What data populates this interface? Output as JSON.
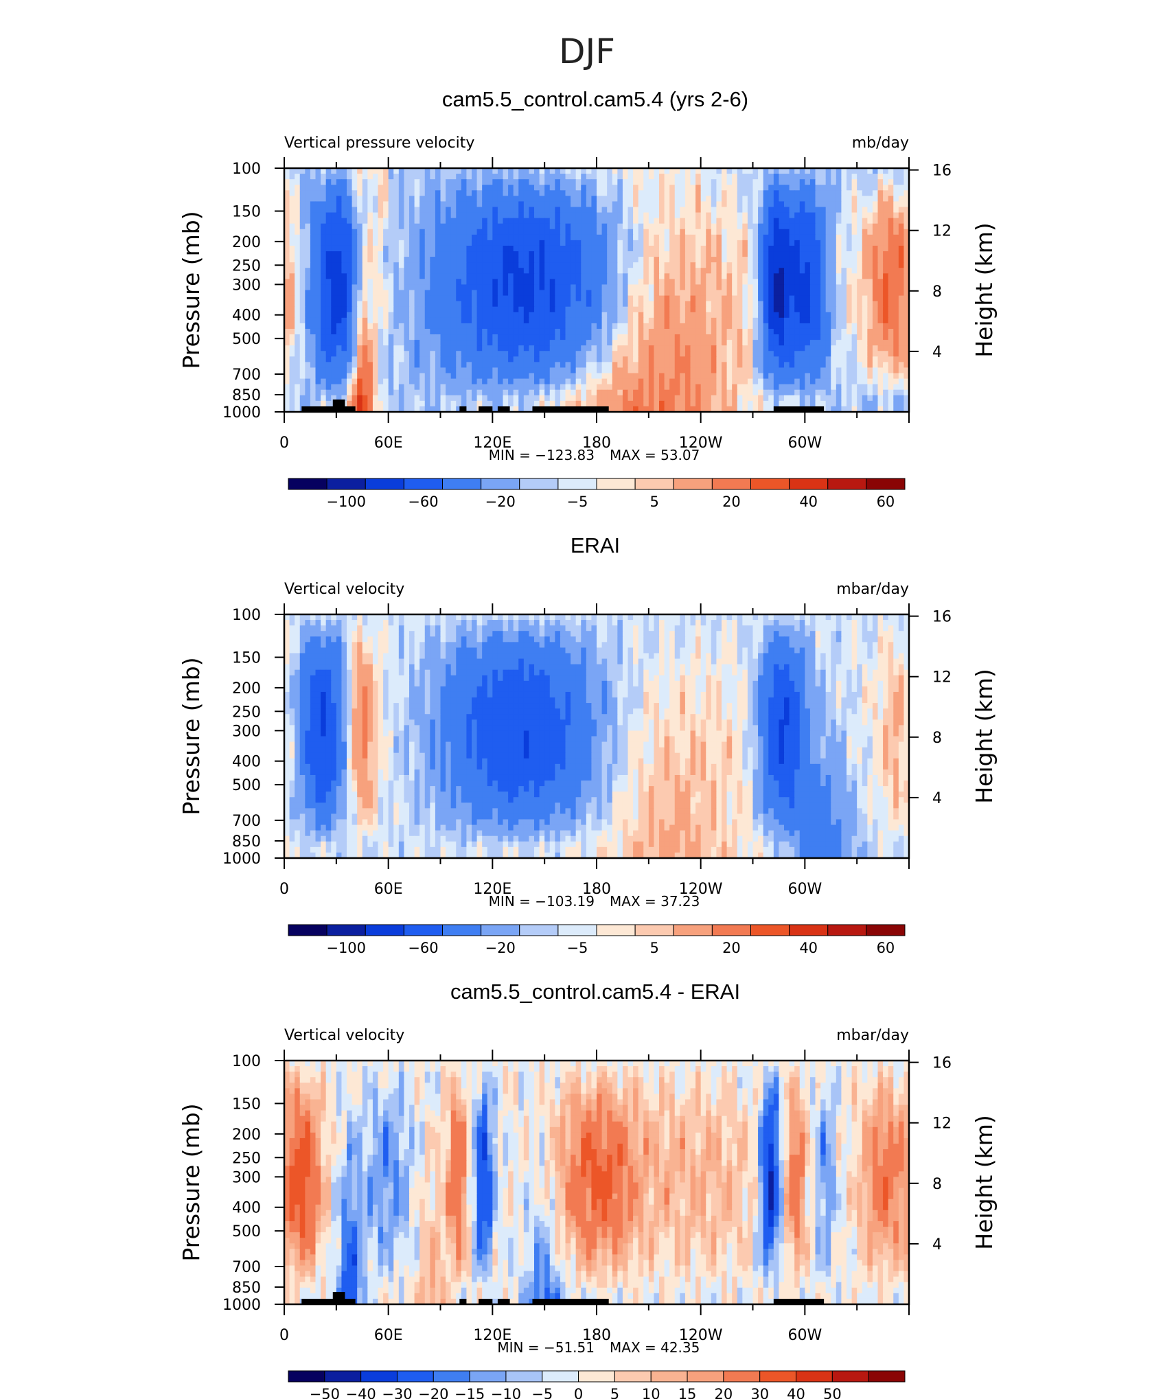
{
  "figure": {
    "title": "DJF"
  },
  "chart_data": [
    {
      "type": "heatmap",
      "title": "cam5.5_control.cam5.4 (yrs 2-6)",
      "left_label": "Vertical pressure velocity",
      "right_label": "mb/day",
      "xlabel": "",
      "ylabel": "Pressure (mb)",
      "y2label": "Height (km)",
      "xticks": [
        "0",
        "60E",
        "120E",
        "180",
        "120W",
        "60W"
      ],
      "yticks": [
        100,
        150,
        200,
        250,
        300,
        400,
        500,
        700,
        850,
        1000
      ],
      "y2ticks": [
        16,
        12,
        8,
        4
      ],
      "min_text": "MIN = −123.83",
      "max_text": "MAX = 53.07",
      "min": -123.83,
      "max": 53.07,
      "colorbar_labels": [
        "−100",
        "−60",
        "−20",
        "−5",
        "5",
        "20",
        "40",
        "60"
      ],
      "levels": [
        -120,
        -100,
        -80,
        -60,
        -40,
        -20,
        -10,
        -5,
        0,
        5,
        10,
        20,
        30,
        40,
        50,
        60
      ],
      "features": [
        {
          "lon": 35,
          "p": 450,
          "value": -70
        },
        {
          "lon": 45,
          "p": 700,
          "value": 40
        },
        {
          "lon": 110,
          "p": 450,
          "value": -60
        },
        {
          "lon": 150,
          "p": 450,
          "value": -80
        },
        {
          "lon": 215,
          "p": 550,
          "value": 25
        },
        {
          "lon": 280,
          "p": 450,
          "value": -70
        },
        {
          "lon": 345,
          "p": 350,
          "value": 30
        }
      ],
      "topography": true
    },
    {
      "type": "heatmap",
      "title": "ERAI",
      "left_label": "Vertical velocity",
      "right_label": "mbar/day",
      "xlabel": "",
      "ylabel": "Pressure (mb)",
      "y2label": "Height (km)",
      "xticks": [
        "0",
        "60E",
        "120E",
        "180",
        "120W",
        "60W"
      ],
      "yticks": [
        100,
        150,
        200,
        250,
        300,
        400,
        500,
        700,
        850,
        1000
      ],
      "y2ticks": [
        16,
        12,
        8,
        4
      ],
      "min_text": "MIN = −103.19",
      "max_text": "MAX = 37.23",
      "min": -103.19,
      "max": 37.23,
      "colorbar_labels": [
        "−100",
        "−60",
        "−20",
        "−5",
        "5",
        "20",
        "40",
        "60"
      ],
      "levels": [
        -120,
        -100,
        -80,
        -60,
        -40,
        -20,
        -10,
        -5,
        0,
        5,
        10,
        20,
        30,
        40,
        50,
        60
      ],
      "features": [
        {
          "lon": 25,
          "p": 450,
          "value": -60
        },
        {
          "lon": 45,
          "p": 550,
          "value": 25
        },
        {
          "lon": 125,
          "p": 450,
          "value": -60
        },
        {
          "lon": 230,
          "p": 500,
          "value": 15
        },
        {
          "lon": 285,
          "p": 550,
          "value": -60
        },
        {
          "lon": 350,
          "p": 350,
          "value": 10
        }
      ],
      "topography": false
    },
    {
      "type": "heatmap",
      "title": "cam5.5_control.cam5.4 - ERAI",
      "left_label": "Vertical velocity",
      "right_label": "mbar/day",
      "xlabel": "",
      "ylabel": "Pressure (mb)",
      "y2label": "Height (km)",
      "xticks": [
        "0",
        "60E",
        "120E",
        "180",
        "120W",
        "60W"
      ],
      "yticks": [
        100,
        150,
        200,
        250,
        300,
        400,
        500,
        700,
        850,
        1000
      ],
      "y2ticks": [
        16,
        12,
        8,
        4
      ],
      "min_text": "MIN = −51.51",
      "max_text": "MAX = 42.35",
      "min": -51.51,
      "max": 42.35,
      "colorbar_labels": [
        "−50",
        "−40",
        "−30",
        "−20",
        "−15",
        "−10",
        "−5",
        "0",
        "5",
        "10",
        "15",
        "20",
        "30",
        "40",
        "50"
      ],
      "levels": [
        -60,
        -50,
        -40,
        -30,
        -20,
        -15,
        -10,
        -5,
        0,
        5,
        10,
        15,
        20,
        30,
        40,
        50,
        60
      ],
      "features": [
        {
          "lon": 10,
          "p": 350,
          "value": 35
        },
        {
          "lon": 38,
          "p": 750,
          "value": -30
        },
        {
          "lon": 100,
          "p": 400,
          "value": 30
        },
        {
          "lon": 115,
          "p": 400,
          "value": -30
        },
        {
          "lon": 180,
          "p": 400,
          "value": 30
        },
        {
          "lon": 280,
          "p": 400,
          "value": -40
        },
        {
          "lon": 345,
          "p": 350,
          "value": 25
        }
      ],
      "topography": true
    }
  ],
  "colors": {
    "blue_to_red": [
      "#06015f",
      "#0b1f9f",
      "#0a3ddb",
      "#1f5df0",
      "#3f7ef2",
      "#7aa5f5",
      "#b4ccf8",
      "#dcebfb",
      "#fde8d5",
      "#fccab0",
      "#f7a17d",
      "#f27a52",
      "#ec5628",
      "#d93315",
      "#b81810",
      "#8a0505"
    ],
    "diff_palette": [
      "#06015f",
      "#0b1f9f",
      "#0a3ddb",
      "#1f5df0",
      "#3f7ef2",
      "#7aa5f5",
      "#a8c4f7",
      "#dcebfb",
      "#fde8d5",
      "#fccab0",
      "#f9b392",
      "#f7a17d",
      "#f27a52",
      "#ec5628",
      "#d93315",
      "#b81810",
      "#8a0505"
    ],
    "topography": "#000000"
  }
}
